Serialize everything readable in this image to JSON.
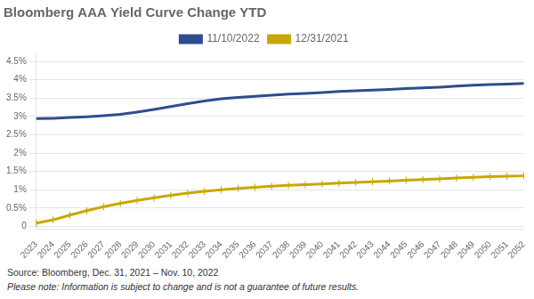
{
  "chart_data": {
    "type": "line",
    "title": "Bloomberg AAA Yield Curve Change YTD",
    "annotations": [
      "Source: Bloomberg, Dec. 31, 2021 – Nov. 10, 2022",
      "Please note: Information is subject to change and is not a guarantee of future results."
    ],
    "categories": [
      "2023",
      "2024",
      "2025",
      "2026",
      "2027",
      "2028",
      "2029",
      "2030",
      "2031",
      "2032",
      "2033",
      "2034",
      "2035",
      "2036",
      "2037",
      "2038",
      "2039",
      "2040",
      "2041",
      "2042",
      "2043",
      "2044",
      "2045",
      "2046",
      "2047",
      "2048",
      "2049",
      "2050",
      "2051",
      "2052"
    ],
    "series": [
      {
        "name": "11/10/2022",
        "color": "#2E4D8E",
        "values": [
          2.94,
          2.95,
          2.97,
          2.99,
          3.02,
          3.06,
          3.12,
          3.19,
          3.27,
          3.35,
          3.42,
          3.48,
          3.52,
          3.55,
          3.58,
          3.61,
          3.63,
          3.65,
          3.68,
          3.7,
          3.72,
          3.74,
          3.76,
          3.78,
          3.8,
          3.83,
          3.85,
          3.87,
          3.88,
          3.9
        ]
      },
      {
        "name": "12/31/2021",
        "color": "#C8A800",
        "marker": "vline",
        "values": [
          0.09,
          0.18,
          0.31,
          0.43,
          0.54,
          0.63,
          0.71,
          0.78,
          0.85,
          0.91,
          0.96,
          1.0,
          1.04,
          1.07,
          1.1,
          1.12,
          1.14,
          1.16,
          1.18,
          1.2,
          1.22,
          1.24,
          1.26,
          1.28,
          1.3,
          1.32,
          1.34,
          1.36,
          1.37,
          1.38
        ]
      }
    ],
    "ylim": [
      -0.08,
      4.72
    ],
    "yticks": [
      0,
      {
        "value": 0.5,
        "label": "0.5%"
      },
      {
        "value": 1.0,
        "label": "1%"
      },
      {
        "value": 1.5,
        "label": "1.5%"
      },
      {
        "value": 2.0,
        "label": "2%"
      },
      {
        "value": 2.5,
        "label": "2.5%"
      },
      {
        "value": 3.0,
        "label": "3%"
      },
      {
        "value": 3.5,
        "label": "3.5%"
      },
      {
        "value": 4.0,
        "label": "4%"
      },
      {
        "value": 4.5,
        "label": "4.5%"
      }
    ],
    "grid": "y",
    "legend": "top"
  }
}
